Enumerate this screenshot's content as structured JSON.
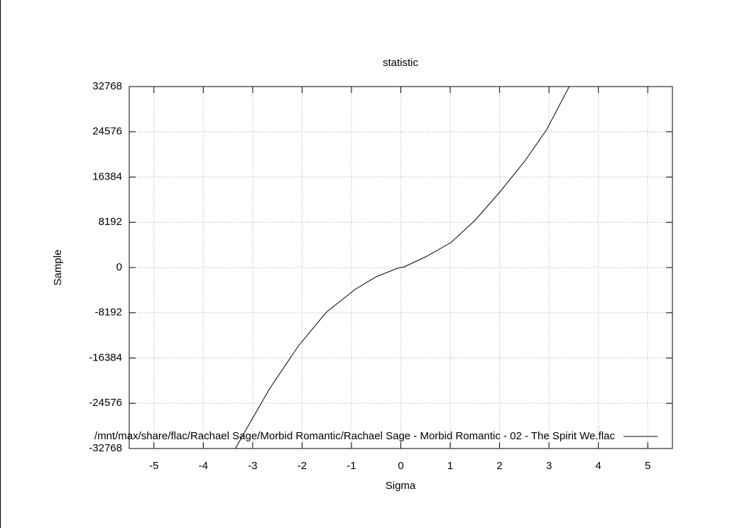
{
  "chart_data": {
    "type": "line",
    "title": "statistic",
    "x_label": "Sigma",
    "y_label": "Sample",
    "x": [
      -3.35,
      -3.09,
      -2.66,
      -2.08,
      -1.51,
      -0.93,
      -0.5,
      -0.07,
      0,
      0.07,
      0.5,
      1.01,
      1.51,
      2.01,
      2.51,
      2.95,
      3.41
    ],
    "series": [
      {
        "name": "/mnt/max/share/flac/Rachael Sage/Morbid Romantic/Rachael Sage - Morbid Romantic - 02 - The Spirit We.flac",
        "color": "#000000",
        "values": [
          -32768,
          -28656,
          -21974,
          -14263,
          -8096,
          -3984,
          -1671,
          -128,
          0,
          128,
          1927,
          4498,
          8610,
          13750,
          19275,
          24929,
          32768
        ]
      }
    ],
    "xlim": [
      -5.5,
      5.5
    ],
    "xticks": [
      -5,
      -4,
      -3,
      -2,
      -1,
      0,
      1,
      2,
      3,
      4,
      5
    ],
    "ylim": [
      -32768,
      32768
    ],
    "yticks": [
      -32768,
      -24576,
      -16384,
      -8192,
      0,
      8192,
      16384,
      24576,
      32768
    ],
    "grid": true,
    "legend": "lower right"
  }
}
